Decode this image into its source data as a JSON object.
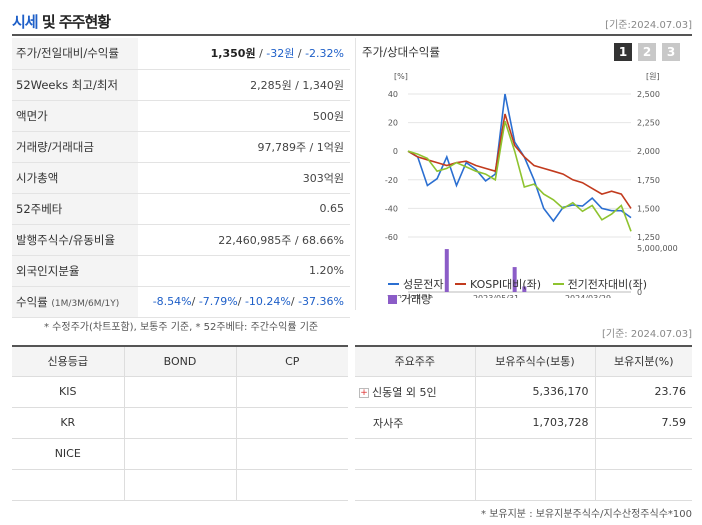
{
  "header": {
    "title_blue": "시세",
    "title_rest": " 및 주주현황",
    "date": "[기준:2024.07.03]"
  },
  "info": {
    "price_label": "주가/전일대비/수익률",
    "price": "1,350원",
    "change": "-32원",
    "change_pct": "-2.32%",
    "w52_label": "52Weeks 최고/최저",
    "w52": "2,285원 / 1,340원",
    "par_label": "액면가",
    "par": "500원",
    "volume_label": "거래량/거래대금",
    "volume": "97,789주 / 1억원",
    "mcap_label": "시가총액",
    "mcap": "303억원",
    "beta_label": "52주베타",
    "beta": "0.65",
    "shares_label": "발행주식수/유동비율",
    "shares": "22,460,985주 / 68.66%",
    "foreign_label": "외국인지분율",
    "foreign": "1.20%",
    "return_label": "수익률",
    "return_sub": "(1M/3M/6M/1Y)",
    "return_1m": "-8.54%",
    "return_3m": "-7.79%",
    "return_6m": "-10.24%",
    "return_1y": "-37.36%"
  },
  "chart": {
    "title": "주가/상대수익률",
    "tabs": [
      "1",
      "2",
      "3"
    ],
    "legend": [
      "성문전자",
      "KOSPI대비(좌)",
      "전기전자대비(좌)",
      "거래량"
    ]
  },
  "colors": {
    "company": "#2b6fd1",
    "kospi": "#c23b1e",
    "sector": "#8ec32f",
    "volume": "#8b5cc7",
    "accent": "#1e5fc8"
  },
  "chart_data": {
    "type": "line",
    "y_left_label": "[%]",
    "y_right_label": "[원]",
    "y_left_ticks": [
      "40",
      "20",
      "0",
      "-20",
      "-40",
      "-60"
    ],
    "y_right_ticks": [
      "2,500",
      "2,250",
      "2,000",
      "1,750",
      "1,500",
      "1,250"
    ],
    "y_volume_ticks": [
      "5,000,000",
      "0"
    ],
    "x_ticks": [
      "2022/07/29",
      "2023/05/31",
      "2024/03/29"
    ],
    "ylim_left": [
      -60,
      40
    ],
    "ylim_right": [
      1250,
      2500
    ],
    "series": [
      {
        "name": "성문전자",
        "axis": "right",
        "values": [
          2000,
          1950,
          1700,
          1760,
          1950,
          1700,
          1900,
          1840,
          1740,
          1800,
          2500,
          2080,
          1950,
          1750,
          1500,
          1390,
          1510,
          1530,
          1520,
          1590,
          1500,
          1480,
          1480,
          1420
        ]
      },
      {
        "name": "KOSPI대비(좌)",
        "axis": "left",
        "values": [
          0,
          -4,
          -6,
          -8,
          -10,
          -8,
          -7,
          -10,
          -12,
          -14,
          26,
          4,
          -4,
          -10,
          -12,
          -14,
          -16,
          -20,
          -22,
          -26,
          -30,
          -28,
          -30,
          -40
        ]
      },
      {
        "name": "전기전자대비(좌)",
        "axis": "left",
        "values": [
          0,
          -2,
          -5,
          -14,
          -12,
          -8,
          -11,
          -14,
          -16,
          -20,
          21,
          0,
          -25,
          -23,
          -30,
          -34,
          -40,
          -36,
          -42,
          -38,
          -48,
          -44,
          -38,
          -56
        ]
      },
      {
        "name": "거래량",
        "axis": "volume",
        "values": [
          0,
          0,
          0,
          0,
          6200000,
          0,
          0,
          0,
          0,
          0,
          0,
          3600000,
          800000,
          0,
          0,
          0,
          0,
          0,
          0,
          0,
          0,
          0,
          0,
          0
        ]
      }
    ]
  },
  "notes": {
    "note1": "* 수정주가(차트포함), 보통주 기준, * 52주베타: 주간수익률 기준",
    "note2": "[기준: 2024.07.03]",
    "note3": "* 보유지분 : 보유지분주식수/지수산정주식수*100"
  },
  "credit": {
    "headers": [
      "신용등급",
      "BOND",
      "CP"
    ],
    "rows": [
      [
        "KIS",
        "",
        ""
      ],
      [
        "KR",
        "",
        ""
      ],
      [
        "NICE",
        "",
        ""
      ],
      [
        "",
        "",
        ""
      ]
    ]
  },
  "holders": {
    "headers": [
      "주요주주",
      "보유주식수(보통)",
      "보유지분(%)"
    ],
    "rows": [
      {
        "name": "신동열 외 5인",
        "shares": "5,336,170",
        "pct": "23.76",
        "expand": "+"
      },
      {
        "name": "자사주",
        "shares": "1,703,728",
        "pct": "7.59",
        "expand": ""
      },
      {
        "name": "",
        "shares": "",
        "pct": "",
        "expand": ""
      },
      {
        "name": "",
        "shares": "",
        "pct": "",
        "expand": ""
      }
    ]
  }
}
